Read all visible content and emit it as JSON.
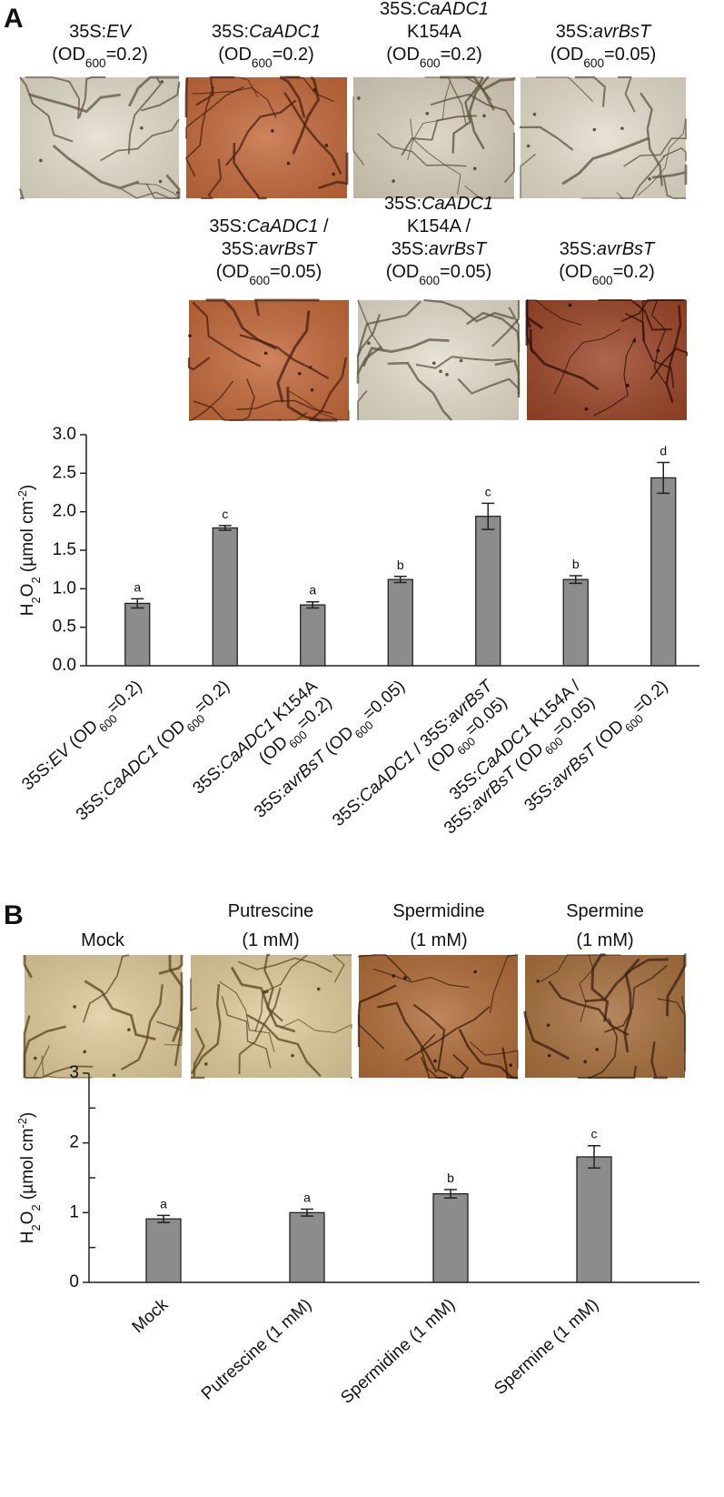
{
  "panel_labels": [
    "A",
    "B"
  ],
  "image_captions": [
    [
      [
        [
          "35S:",
          {
            "text": "EV",
            "style": "italic"
          }
        ],
        [
          "(OD",
          {
            "text": "600",
            "style": "sub"
          },
          "=0.2)"
        ]
      ],
      [
        [
          "35S:",
          {
            "text": "CaADC1",
            "style": "italic"
          }
        ],
        [
          "(OD",
          {
            "text": "600",
            "style": "sub"
          },
          "=0.2)"
        ]
      ],
      [
        [
          "35S:",
          {
            "text": "CaADC1",
            "style": "italic"
          }
        ],
        [
          "K154A"
        ],
        [
          "(OD",
          {
            "text": "600",
            "style": "sub"
          },
          "=0.2)"
        ]
      ],
      [
        [
          "35S:",
          {
            "text": "avrBsT",
            "style": "italic"
          }
        ],
        [
          "(OD",
          {
            "text": "600",
            "style": "sub"
          },
          "=0.05)"
        ]
      ],
      [
        [
          "35S:",
          {
            "text": "CaADC1",
            "style": "italic"
          },
          " /"
        ],
        [
          "35S:",
          {
            "text": "avrBsT",
            "style": "italic"
          }
        ],
        [
          "(OD",
          {
            "text": "600",
            "style": "sub"
          },
          "=0.05)"
        ]
      ],
      [
        [
          "35S:",
          {
            "text": "CaADC1",
            "style": "italic"
          }
        ],
        [
          "K154A /"
        ],
        [
          "35S:",
          {
            "text": "avrBsT",
            "style": "italic"
          }
        ],
        [
          "(OD",
          {
            "text": "600",
            "style": "sub"
          },
          "=0.05)"
        ]
      ],
      [
        [
          "35S:",
          {
            "text": "avrBsT",
            "style": "italic"
          }
        ],
        [
          "(OD",
          {
            "text": "600",
            "style": "sub"
          },
          "=0.2)"
        ]
      ]
    ],
    [
      [
        [
          "Mock"
        ]
      ],
      [
        [
          "Putrescine"
        ],
        [
          "(1 mM)"
        ]
      ],
      [
        [
          "Spermidine"
        ],
        [
          "(1 mM)"
        ]
      ],
      [
        [
          "Spermine"
        ],
        [
          "(1 mM)"
        ]
      ]
    ]
  ],
  "chart_data": [
    {
      "type": "bar",
      "ylabel": [
        [
          "H",
          {
            "text": "2",
            "style": "sub"
          },
          "O",
          {
            "text": "2",
            "style": "sub"
          },
          "  (µmol cm",
          {
            "text": "-2",
            "style": "sup"
          },
          ")"
        ]
      ],
      "categories": [
        [
          [
            "35S:",
            {
              "text": "EV",
              "style": "italic"
            },
            " (OD",
            {
              "text": "600",
              "style": "sub"
            },
            "=0.2)"
          ]
        ],
        [
          [
            "35S:",
            {
              "text": "CaADC1",
              "style": "italic"
            },
            " (OD",
            {
              "text": "600",
              "style": "sub"
            },
            "=0.2)"
          ]
        ],
        [
          [
            "35S:",
            {
              "text": "CaADC1",
              "style": "italic"
            },
            " K154A"
          ],
          [
            "(OD",
            {
              "text": "600",
              "style": "sub"
            },
            "=0.2)"
          ]
        ],
        [
          [
            "35S:",
            {
              "text": "avrBsT",
              "style": "italic"
            },
            " (OD",
            {
              "text": "600",
              "style": "sub"
            },
            "=0.05)"
          ]
        ],
        [
          [
            "35S:",
            {
              "text": "CaADC1",
              "style": "italic"
            },
            " / 35S:",
            {
              "text": "avrBsT",
              "style": "italic"
            }
          ],
          [
            "(OD",
            {
              "text": "600",
              "style": "sub"
            },
            "=0.05)"
          ]
        ],
        [
          [
            "35S:",
            {
              "text": "CaADC1",
              "style": "italic"
            },
            " K154A /"
          ],
          [
            "35S:",
            {
              "text": "avrBsT",
              "style": "italic"
            },
            " (OD",
            {
              "text": "600",
              "style": "sub"
            },
            "=0.05)"
          ]
        ],
        [
          [
            "35S:",
            {
              "text": "avrBsT",
              "style": "italic"
            },
            " (OD",
            {
              "text": "600",
              "style": "sub"
            },
            "=0.2)"
          ]
        ]
      ],
      "values": [
        0.81,
        1.79,
        0.79,
        1.12,
        1.94,
        1.12,
        2.44
      ],
      "errors": [
        0.06,
        0.03,
        0.04,
        0.04,
        0.17,
        0.05,
        0.2
      ],
      "annotations": [
        "a",
        "c",
        "a",
        "b",
        "c",
        "b",
        "d"
      ],
      "color": "#8c8c8c",
      "ylim": [
        0,
        3
      ],
      "yticks": [
        {
          "value": 0,
          "label": "0.0"
        },
        0.5,
        {
          "value": 1,
          "label": "1.0"
        },
        1.5,
        {
          "value": 2,
          "label": "2.0"
        },
        2.5,
        {
          "value": 3,
          "label": "3.0"
        }
      ]
    },
    {
      "type": "bar",
      "ylabel": [
        [
          "H",
          {
            "text": "2",
            "style": "sub"
          },
          "O",
          {
            "text": "2",
            "style": "sub"
          },
          "  (µmol cm",
          {
            "text": "-2",
            "style": "sup"
          },
          ")"
        ]
      ],
      "categories": [
        [
          [
            "Mock"
          ]
        ],
        [
          [
            "Putrescine (1 mM)"
          ]
        ],
        [
          [
            "Spermidine (1 mM)"
          ]
        ],
        [
          [
            "Spermine (1 mM)"
          ]
        ]
      ],
      "values": [
        0.91,
        1.0,
        1.27,
        1.8
      ],
      "errors": [
        0.05,
        0.05,
        0.06,
        0.16
      ],
      "annotations": [
        "a",
        "a",
        "b",
        "c"
      ],
      "color": "#8c8c8c",
      "ylim": [
        0,
        3
      ],
      "yticks": [
        0,
        1,
        2,
        3
      ],
      "minor_yticks": [
        0.5,
        1.5,
        2.5
      ]
    }
  ]
}
